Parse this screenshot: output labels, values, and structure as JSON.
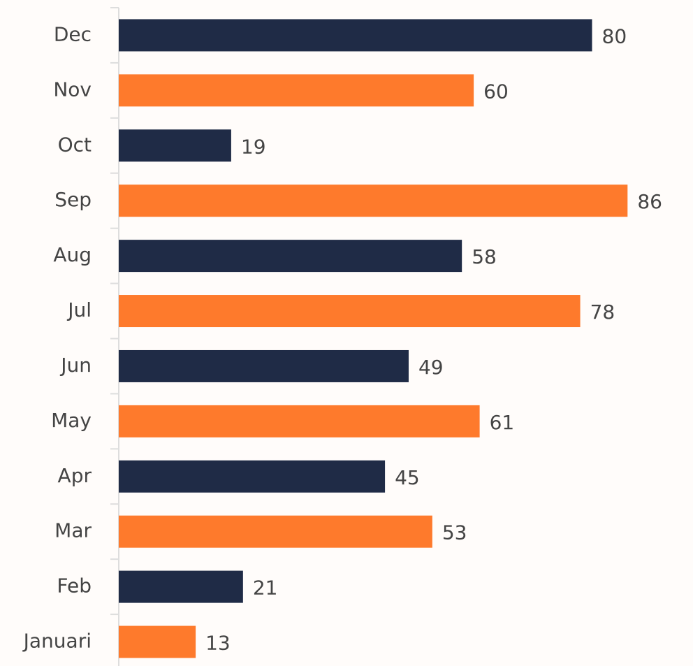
{
  "chart_data": {
    "type": "hbar",
    "categories": [
      "Januari",
      "Feb",
      "Mar",
      "Apr",
      "May",
      "Jun",
      "Jul",
      "Aug",
      "Sep",
      "Oct",
      "Nov",
      "Dec"
    ],
    "values": [
      13,
      21,
      53,
      45,
      61,
      49,
      78,
      58,
      86,
      19,
      60,
      80
    ],
    "colors": [
      "#fe7a2c",
      "#1f2b46",
      "#fe7a2c",
      "#1f2b46",
      "#fe7a2c",
      "#1f2b46",
      "#fe7a2c",
      "#1f2b46",
      "#fe7a2c",
      "#1f2b46",
      "#fe7a2c",
      "#1f2b46"
    ],
    "xlim": [
      0,
      96
    ]
  }
}
